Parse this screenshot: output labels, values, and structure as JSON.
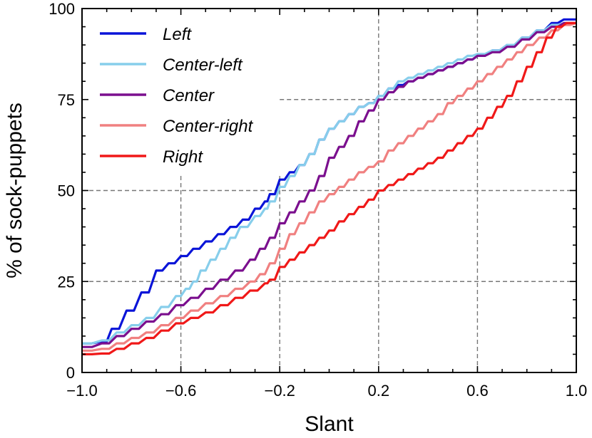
{
  "chart_data": {
    "type": "line",
    "title": "",
    "xlabel": "Slant",
    "ylabel": "% of sock-puppets",
    "xlim": [
      -1.0,
      1.0
    ],
    "ylim": [
      0,
      100
    ],
    "xticks": [
      -1.0,
      -0.6,
      -0.2,
      0.2,
      0.6,
      1.0
    ],
    "xtick_labels": [
      "−1.0",
      "−0.6",
      "−0.2",
      "0.2",
      "0.6",
      "1.0"
    ],
    "yticks": [
      0,
      25,
      50,
      75,
      100
    ],
    "ytick_labels": [
      "0",
      "25",
      "50",
      "75",
      "100"
    ],
    "legend_position": "top-left",
    "grid": "dashed partial guide lines",
    "guides": [
      {
        "orientation": "horizontal",
        "y": 25,
        "from_x": -1.0,
        "to_x": 1.0
      },
      {
        "orientation": "horizontal",
        "y": 50,
        "from_x": -1.0,
        "to_x": 1.0
      },
      {
        "orientation": "horizontal",
        "y": 75,
        "from_x": -0.2,
        "to_x": 1.0
      },
      {
        "orientation": "vertical",
        "x": -0.6,
        "from_y": 0,
        "to_y": 54
      },
      {
        "orientation": "vertical",
        "x": -0.2,
        "from_y": 0,
        "to_y": 54
      },
      {
        "orientation": "vertical",
        "x": 0.2,
        "from_y": 0,
        "to_y": 100
      },
      {
        "orientation": "vertical",
        "x": 0.6,
        "from_y": 0,
        "to_y": 100
      }
    ],
    "series": [
      {
        "name": "Left",
        "color": "#0a14d8",
        "points": [
          [
            -1.0,
            8
          ],
          [
            -0.92,
            8.5
          ],
          [
            -0.88,
            12
          ],
          [
            -0.82,
            17
          ],
          [
            -0.76,
            22
          ],
          [
            -0.7,
            28
          ],
          [
            -0.65,
            30
          ],
          [
            -0.6,
            32
          ],
          [
            -0.55,
            34
          ],
          [
            -0.5,
            36
          ],
          [
            -0.45,
            38
          ],
          [
            -0.4,
            40
          ],
          [
            -0.35,
            42
          ],
          [
            -0.3,
            45
          ],
          [
            -0.26,
            47
          ],
          [
            -0.24,
            49
          ],
          [
            -0.2,
            53
          ],
          [
            -0.16,
            55
          ],
          [
            -0.12,
            57
          ],
          [
            -0.08,
            60
          ],
          [
            -0.04,
            64
          ],
          [
            0.0,
            67
          ],
          [
            0.04,
            69
          ],
          [
            0.08,
            71
          ],
          [
            0.12,
            73
          ],
          [
            0.16,
            74
          ],
          [
            0.2,
            76
          ],
          [
            0.24,
            78
          ],
          [
            0.28,
            79
          ],
          [
            0.32,
            80
          ],
          [
            0.36,
            81
          ],
          [
            0.4,
            82
          ],
          [
            0.44,
            83
          ],
          [
            0.48,
            84
          ],
          [
            0.52,
            85
          ],
          [
            0.56,
            86
          ],
          [
            0.6,
            87
          ],
          [
            0.66,
            88.5
          ],
          [
            0.72,
            90
          ],
          [
            0.78,
            92
          ],
          [
            0.84,
            94
          ],
          [
            0.9,
            96
          ],
          [
            0.95,
            97
          ],
          [
            1.0,
            97
          ]
        ]
      },
      {
        "name": "Center-left",
        "color": "#87ceeb",
        "points": [
          [
            -1.0,
            8
          ],
          [
            -0.92,
            8.8
          ],
          [
            -0.86,
            11
          ],
          [
            -0.8,
            13
          ],
          [
            -0.74,
            15
          ],
          [
            -0.68,
            18
          ],
          [
            -0.62,
            21
          ],
          [
            -0.58,
            23
          ],
          [
            -0.55,
            25
          ],
          [
            -0.52,
            28
          ],
          [
            -0.48,
            31
          ],
          [
            -0.44,
            34
          ],
          [
            -0.4,
            37
          ],
          [
            -0.36,
            40
          ],
          [
            -0.3,
            43
          ],
          [
            -0.26,
            45
          ],
          [
            -0.24,
            47
          ],
          [
            -0.2,
            51
          ],
          [
            -0.16,
            54
          ],
          [
            -0.12,
            57
          ],
          [
            -0.08,
            60
          ],
          [
            -0.04,
            64
          ],
          [
            0.0,
            67
          ],
          [
            0.04,
            69
          ],
          [
            0.08,
            71
          ],
          [
            0.12,
            73
          ],
          [
            0.16,
            74
          ],
          [
            0.2,
            76
          ],
          [
            0.24,
            78
          ],
          [
            0.28,
            80
          ],
          [
            0.32,
            81
          ],
          [
            0.36,
            82
          ],
          [
            0.4,
            83
          ],
          [
            0.44,
            84
          ],
          [
            0.48,
            85
          ],
          [
            0.52,
            86
          ],
          [
            0.56,
            87
          ],
          [
            0.6,
            87.5
          ],
          [
            0.66,
            88.5
          ],
          [
            0.72,
            90
          ],
          [
            0.78,
            92
          ],
          [
            0.84,
            94
          ],
          [
            0.9,
            95.5
          ],
          [
            0.95,
            96
          ],
          [
            1.0,
            96
          ]
        ]
      },
      {
        "name": "Center",
        "color": "#7b0f8e",
        "points": [
          [
            -1.0,
            7
          ],
          [
            -0.92,
            8
          ],
          [
            -0.86,
            10
          ],
          [
            -0.8,
            12
          ],
          [
            -0.74,
            14
          ],
          [
            -0.68,
            16
          ],
          [
            -0.62,
            18.5
          ],
          [
            -0.56,
            20.5
          ],
          [
            -0.5,
            23
          ],
          [
            -0.44,
            25.5
          ],
          [
            -0.38,
            28
          ],
          [
            -0.32,
            31
          ],
          [
            -0.28,
            34
          ],
          [
            -0.24,
            37
          ],
          [
            -0.2,
            41
          ],
          [
            -0.16,
            44
          ],
          [
            -0.12,
            47
          ],
          [
            -0.08,
            50
          ],
          [
            -0.04,
            54
          ],
          [
            0.0,
            59
          ],
          [
            0.04,
            62
          ],
          [
            0.08,
            65
          ],
          [
            0.12,
            69
          ],
          [
            0.16,
            72
          ],
          [
            0.2,
            75
          ],
          [
            0.24,
            77
          ],
          [
            0.28,
            78.5
          ],
          [
            0.32,
            80
          ],
          [
            0.36,
            81
          ],
          [
            0.4,
            82
          ],
          [
            0.44,
            83
          ],
          [
            0.48,
            84
          ],
          [
            0.52,
            85
          ],
          [
            0.56,
            86
          ],
          [
            0.6,
            87
          ],
          [
            0.66,
            88
          ],
          [
            0.72,
            89.5
          ],
          [
            0.78,
            91.5
          ],
          [
            0.84,
            93.5
          ],
          [
            0.9,
            95
          ],
          [
            0.95,
            96
          ],
          [
            1.0,
            96
          ]
        ]
      },
      {
        "name": "Center-right",
        "color": "#f08080",
        "points": [
          [
            -1.0,
            6
          ],
          [
            -0.92,
            6.5
          ],
          [
            -0.86,
            8
          ],
          [
            -0.8,
            9.5
          ],
          [
            -0.74,
            11
          ],
          [
            -0.68,
            13
          ],
          [
            -0.62,
            15
          ],
          [
            -0.56,
            17
          ],
          [
            -0.5,
            19
          ],
          [
            -0.44,
            21
          ],
          [
            -0.38,
            23
          ],
          [
            -0.32,
            25
          ],
          [
            -0.28,
            27
          ],
          [
            -0.24,
            30
          ],
          [
            -0.2,
            34
          ],
          [
            -0.16,
            38
          ],
          [
            -0.12,
            41
          ],
          [
            -0.08,
            44
          ],
          [
            -0.04,
            47
          ],
          [
            0.0,
            49
          ],
          [
            0.04,
            51
          ],
          [
            0.08,
            53
          ],
          [
            0.12,
            55
          ],
          [
            0.16,
            56.5
          ],
          [
            0.2,
            58
          ],
          [
            0.24,
            61
          ],
          [
            0.28,
            63
          ],
          [
            0.32,
            65
          ],
          [
            0.36,
            67
          ],
          [
            0.4,
            69
          ],
          [
            0.44,
            71
          ],
          [
            0.48,
            74
          ],
          [
            0.52,
            76
          ],
          [
            0.56,
            78
          ],
          [
            0.6,
            80
          ],
          [
            0.64,
            82
          ],
          [
            0.68,
            84
          ],
          [
            0.72,
            86
          ],
          [
            0.76,
            88
          ],
          [
            0.8,
            90
          ],
          [
            0.85,
            92
          ],
          [
            0.9,
            94
          ],
          [
            0.95,
            95.5
          ],
          [
            1.0,
            96
          ]
        ]
      },
      {
        "name": "Right",
        "color": "#f01818",
        "points": [
          [
            -1.0,
            5
          ],
          [
            -0.92,
            5.2
          ],
          [
            -0.86,
            6.5
          ],
          [
            -0.8,
            8
          ],
          [
            -0.74,
            9.5
          ],
          [
            -0.68,
            11.5
          ],
          [
            -0.62,
            13.5
          ],
          [
            -0.56,
            15
          ],
          [
            -0.5,
            16.5
          ],
          [
            -0.44,
            18.5
          ],
          [
            -0.38,
            20.5
          ],
          [
            -0.32,
            22.5
          ],
          [
            -0.26,
            24.5
          ],
          [
            -0.24,
            25.5
          ],
          [
            -0.2,
            29
          ],
          [
            -0.16,
            31
          ],
          [
            -0.12,
            33
          ],
          [
            -0.08,
            35
          ],
          [
            -0.04,
            37
          ],
          [
            0.0,
            39
          ],
          [
            0.04,
            41.5
          ],
          [
            0.08,
            43.5
          ],
          [
            0.12,
            45.5
          ],
          [
            0.16,
            47.5
          ],
          [
            0.2,
            50
          ],
          [
            0.24,
            51.5
          ],
          [
            0.28,
            53
          ],
          [
            0.32,
            54.5
          ],
          [
            0.36,
            56
          ],
          [
            0.4,
            57.5
          ],
          [
            0.44,
            59
          ],
          [
            0.48,
            61
          ],
          [
            0.52,
            63
          ],
          [
            0.56,
            65
          ],
          [
            0.6,
            67
          ],
          [
            0.64,
            70
          ],
          [
            0.68,
            73
          ],
          [
            0.72,
            76
          ],
          [
            0.76,
            80
          ],
          [
            0.8,
            84
          ],
          [
            0.84,
            88
          ],
          [
            0.88,
            92
          ],
          [
            0.92,
            95
          ],
          [
            0.96,
            96
          ],
          [
            1.0,
            96
          ]
        ]
      }
    ]
  }
}
